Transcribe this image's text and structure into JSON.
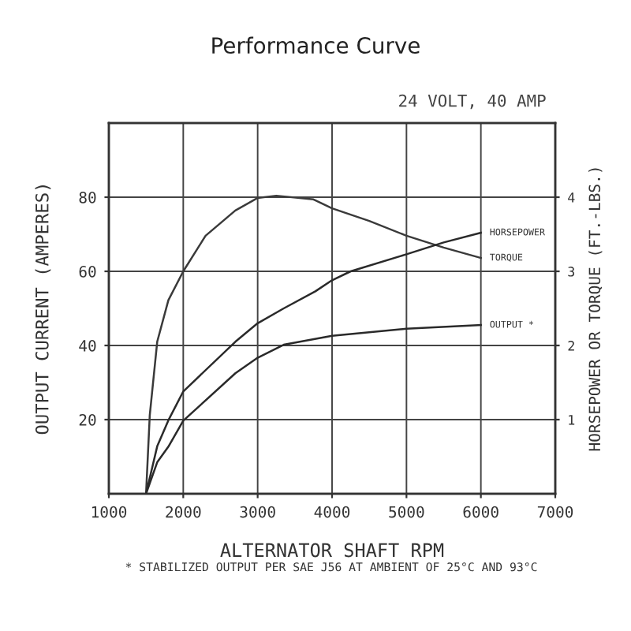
{
  "chart_data": {
    "type": "line",
    "title": "Performance Curve",
    "subtitle": "24 VOLT, 40 AMP",
    "xlabel": "ALTERNATOR SHAFT RPM",
    "ylabel": "OUTPUT CURRENT (AMPERES)",
    "y2label": "HORSEPOWER OR TORQUE (FT.-LBS.)",
    "xlim": [
      1000,
      7000
    ],
    "xticks": [
      1000,
      2000,
      3000,
      4000,
      5000,
      6000,
      7000
    ],
    "ylim": [
      0,
      100
    ],
    "yticks": [
      20,
      40,
      60,
      80
    ],
    "y2lim": [
      0,
      5
    ],
    "y2ticks": [
      1,
      2,
      3,
      4
    ],
    "grid": true,
    "line_style": "solid",
    "series": [
      {
        "name": "TORQUE",
        "axis": "y2",
        "color": "#3a3a3a",
        "x": [
          1500,
          1550,
          1650,
          1800,
          2000,
          2300,
          2700,
          3000,
          3250,
          3750,
          4000,
          4500,
          5000,
          5500,
          6000
        ],
        "values": [
          0,
          1.06,
          2.05,
          2.61,
          3.0,
          3.48,
          3.82,
          3.99,
          4.02,
          3.97,
          3.85,
          3.68,
          3.48,
          3.32,
          3.18
        ]
      },
      {
        "name": "HORSEPOWER",
        "axis": "y2",
        "color": "#2a2a2a",
        "x": [
          1500,
          1650,
          1800,
          2000,
          2700,
          3000,
          3350,
          3775,
          4000,
          4250,
          5000,
          5500,
          6000
        ],
        "values": [
          0,
          0.64,
          0.99,
          1.38,
          2.05,
          2.3,
          2.5,
          2.73,
          2.88,
          3.0,
          3.23,
          3.39,
          3.52
        ]
      },
      {
        "name": "OUTPUT *",
        "color": "#2a2a2a",
        "x": [
          1500,
          1650,
          1800,
          2000,
          2700,
          3000,
          3350,
          4000,
          5000,
          6000
        ],
        "values": [
          0,
          8.5,
          12.7,
          19.7,
          32.5,
          36.7,
          40.2,
          42.6,
          44.5,
          45.5
        ]
      }
    ],
    "annotations": [
      "* STABILIZED OUTPUT PER SAE J56 AT AMBIENT OF 25°C AND 93°C"
    ]
  }
}
